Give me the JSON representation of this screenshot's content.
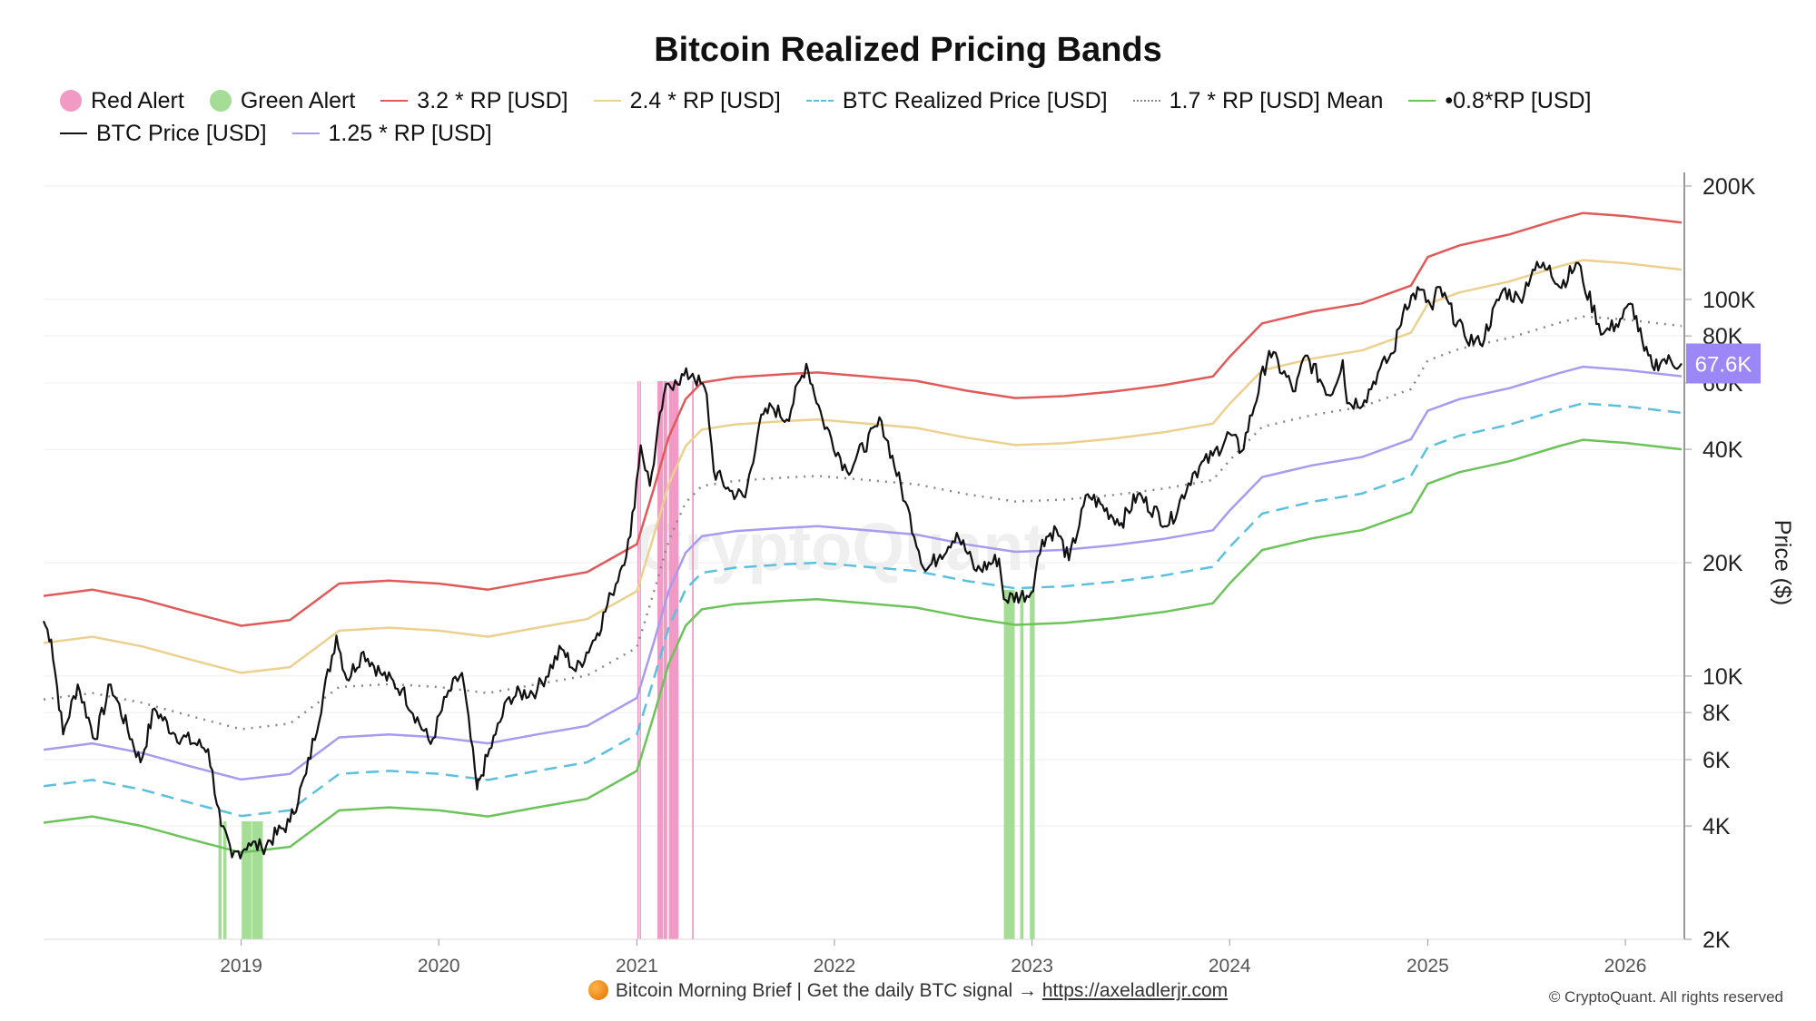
{
  "watermark": "CryptoQuant",
  "footer": {
    "text": "Bitcoin Morning Brief | Get the daily BTC signal →",
    "link": "https://axeladlerjr.com"
  },
  "copyright": "© CryptoQuant. All rights reserved",
  "chart_data": {
    "type": "line",
    "title": "Bitcoin Realized Pricing Bands",
    "ylabel": "Price ($)",
    "xlabel": "",
    "y_scale": "log",
    "ylim": [
      2000,
      200000
    ],
    "xlim": [
      "2018-01-01",
      "2026-04-20"
    ],
    "grid": "horizontal",
    "legend_position": "top",
    "x_ticks": [
      "2019",
      "2020",
      "2021",
      "2022",
      "2023",
      "2024",
      "2025",
      "2026"
    ],
    "y_ticks": [
      {
        "value": 2000,
        "label": "2K"
      },
      {
        "value": 4000,
        "label": "4K"
      },
      {
        "value": 6000,
        "label": "6K"
      },
      {
        "value": 8000,
        "label": "8K"
      },
      {
        "value": 10000,
        "label": "10K"
      },
      {
        "value": 20000,
        "label": "20K"
      },
      {
        "value": 40000,
        "label": "40K"
      },
      {
        "value": 60000,
        "label": "60K"
      },
      {
        "value": 80000,
        "label": "80K"
      },
      {
        "value": 100000,
        "label": "100K"
      },
      {
        "value": 200000,
        "label": "200K"
      }
    ],
    "last_value_label": "67.6K",
    "last_value_color": "#9b87f5",
    "legend": [
      {
        "name": "Red Alert",
        "marker": "dot",
        "color": "#f29ac6"
      },
      {
        "name": "Green Alert",
        "marker": "dot",
        "color": "#a5dd96"
      },
      {
        "name": "3.2 * RP [USD]",
        "marker": "line",
        "color": "#e05a5a"
      },
      {
        "name": "2.4 * RP [USD]",
        "marker": "line",
        "color": "#ecd08f"
      },
      {
        "name": "BTC Realized Price [USD]",
        "marker": "dashed",
        "color": "#5bc0de"
      },
      {
        "name": "1.7 * RP [USD] Mean",
        "marker": "dotted",
        "color": "#888888"
      },
      {
        "name": "•0.8*RP [USD]",
        "marker": "line",
        "color": "#6cc35a"
      },
      {
        "name": "BTC Price [USD]",
        "marker": "line",
        "color": "#111111"
      },
      {
        "name": "1.25 * RP [USD]",
        "marker": "line",
        "color": "#a99af0"
      }
    ],
    "realized_price": {
      "dates": [
        "2018-01-01",
        "2018-04-01",
        "2018-07-01",
        "2018-10-01",
        "2019-01-01",
        "2019-04-01",
        "2019-07-01",
        "2019-10-01",
        "2020-01-01",
        "2020-04-01",
        "2020-07-01",
        "2020-10-01",
        "2021-01-01",
        "2021-02-01",
        "2021-03-01",
        "2021-04-01",
        "2021-05-01",
        "2021-07-01",
        "2021-10-01",
        "2021-12-01",
        "2022-03-01",
        "2022-06-01",
        "2022-09-01",
        "2022-12-01",
        "2023-03-01",
        "2023-06-01",
        "2023-09-01",
        "2023-12-01",
        "2024-01-01",
        "2024-03-01",
        "2024-06-01",
        "2024-09-01",
        "2024-12-01",
        "2025-01-01",
        "2025-03-01",
        "2025-06-01",
        "2025-09-01",
        "2025-10-15",
        "2026-01-01",
        "2026-04-15"
      ],
      "values": [
        5100,
        5300,
        5000,
        4600,
        4250,
        4400,
        5500,
        5600,
        5500,
        5300,
        5600,
        5900,
        7000,
        9800,
        13500,
        17000,
        18800,
        19400,
        19800,
        20000,
        19500,
        19000,
        17900,
        17100,
        17300,
        17800,
        18500,
        19500,
        22000,
        27000,
        29000,
        30500,
        34000,
        40500,
        43500,
        46500,
        51000,
        53000,
        52000,
        50000
      ]
    },
    "bands": [
      {
        "name": "3.2 * RP [USD]",
        "multiplier": 3.2
      },
      {
        "name": "2.4 * RP [USD]",
        "multiplier": 2.4
      },
      {
        "name": "1.7 * RP [USD] Mean",
        "multiplier": 1.7
      },
      {
        "name": "1.25 * RP [USD]",
        "multiplier": 1.25
      },
      {
        "name": "BTC Realized Price [USD]",
        "multiplier": 1.0
      },
      {
        "name": "•0.8*RP [USD]",
        "multiplier": 0.8
      }
    ],
    "btc_price": {
      "dates": [
        "2018-01-01",
        "2018-01-15",
        "2018-02-06",
        "2018-03-05",
        "2018-04-06",
        "2018-05-05",
        "2018-06-29",
        "2018-07-25",
        "2018-09-01",
        "2018-11-01",
        "2018-11-25",
        "2018-12-15",
        "2019-01-15",
        "2019-02-08",
        "2019-04-01",
        "2019-05-01",
        "2019-06-26",
        "2019-07-15",
        "2019-08-15",
        "2019-09-15",
        "2019-10-25",
        "2019-12-17",
        "2020-01-15",
        "2020-02-13",
        "2020-03-12",
        "2020-03-16",
        "2020-04-15",
        "2020-05-10",
        "2020-07-01",
        "2020-08-15",
        "2020-09-10",
        "2020-10-20",
        "2020-11-15",
        "2020-12-01",
        "2020-12-20",
        "2021-01-08",
        "2021-01-25",
        "2021-02-20",
        "2021-03-13",
        "2021-04-14",
        "2021-05-10",
        "2021-05-23",
        "2021-06-22",
        "2021-07-20",
        "2021-08-15",
        "2021-09-07",
        "2021-10-05",
        "2021-11-10",
        "2021-12-10",
        "2022-01-24",
        "2022-03-29",
        "2022-05-12",
        "2022-06-18",
        "2022-07-15",
        "2022-08-15",
        "2022-09-20",
        "2022-11-01",
        "2022-11-10",
        "2022-12-30",
        "2023-01-20",
        "2023-02-15",
        "2023-03-10",
        "2023-04-14",
        "2023-06-15",
        "2023-07-15",
        "2023-09-11",
        "2023-10-25",
        "2023-12-01",
        "2024-01-01",
        "2024-01-23",
        "2024-03-14",
        "2024-05-01",
        "2024-05-20",
        "2024-07-05",
        "2024-07-28",
        "2024-08-05",
        "2024-09-06",
        "2024-10-01",
        "2024-10-29",
        "2024-11-20",
        "2024-12-17",
        "2025-01-10",
        "2025-01-20",
        "2025-03-10",
        "2025-04-08",
        "2025-05-20",
        "2025-06-20",
        "2025-07-14",
        "2025-08-14",
        "2025-09-01",
        "2025-10-06",
        "2025-10-15",
        "2025-11-21",
        "2025-12-15",
        "2026-01-14",
        "2026-02-05",
        "2026-02-20",
        "2026-03-10",
        "2026-04-15"
      ],
      "values": [
        14000,
        12500,
        7000,
        9500,
        6800,
        9500,
        5900,
        8200,
        7000,
        6400,
        4000,
        3300,
        3600,
        3500,
        4100,
        5500,
        12800,
        9800,
        11600,
        10200,
        9200,
        6600,
        8800,
        10200,
        5000,
        5300,
        7000,
        8800,
        9200,
        11800,
        10300,
        13000,
        16500,
        19000,
        23500,
        41000,
        32000,
        56000,
        61000,
        63500,
        56000,
        35000,
        31000,
        29800,
        46500,
        52000,
        48000,
        67500,
        48000,
        35000,
        47500,
        29000,
        19000,
        21000,
        24000,
        19000,
        20500,
        16000,
        16600,
        23000,
        24500,
        20300,
        30400,
        25500,
        30300,
        25200,
        34500,
        38500,
        44000,
        39500,
        73000,
        57000,
        71000,
        55500,
        69000,
        53000,
        54000,
        64000,
        72000,
        97000,
        106000,
        94000,
        108000,
        80000,
        76000,
        106000,
        100000,
        120000,
        123000,
        108000,
        125000,
        111000,
        81000,
        86000,
        97000,
        73000,
        66500,
        69000,
        67600
      ]
    },
    "red_alert_periods": [
      [
        "2021-01-02",
        "2021-01-04"
      ],
      [
        "2021-01-06",
        "2021-01-08"
      ],
      [
        "2021-02-08",
        "2021-02-18"
      ],
      [
        "2021-02-19",
        "2021-02-26"
      ],
      [
        "2021-03-01",
        "2021-03-19"
      ],
      [
        "2021-04-13",
        "2021-04-16"
      ]
    ],
    "green_alert_periods": [
      [
        "2018-11-20",
        "2018-11-26"
      ],
      [
        "2018-11-29",
        "2018-12-05"
      ],
      [
        "2019-01-02",
        "2019-01-20"
      ],
      [
        "2019-01-21",
        "2019-02-10"
      ],
      [
        "2022-11-10",
        "2022-11-30"
      ],
      [
        "2022-12-10",
        "2022-12-16"
      ],
      [
        "2022-12-28",
        "2023-01-06"
      ]
    ]
  }
}
